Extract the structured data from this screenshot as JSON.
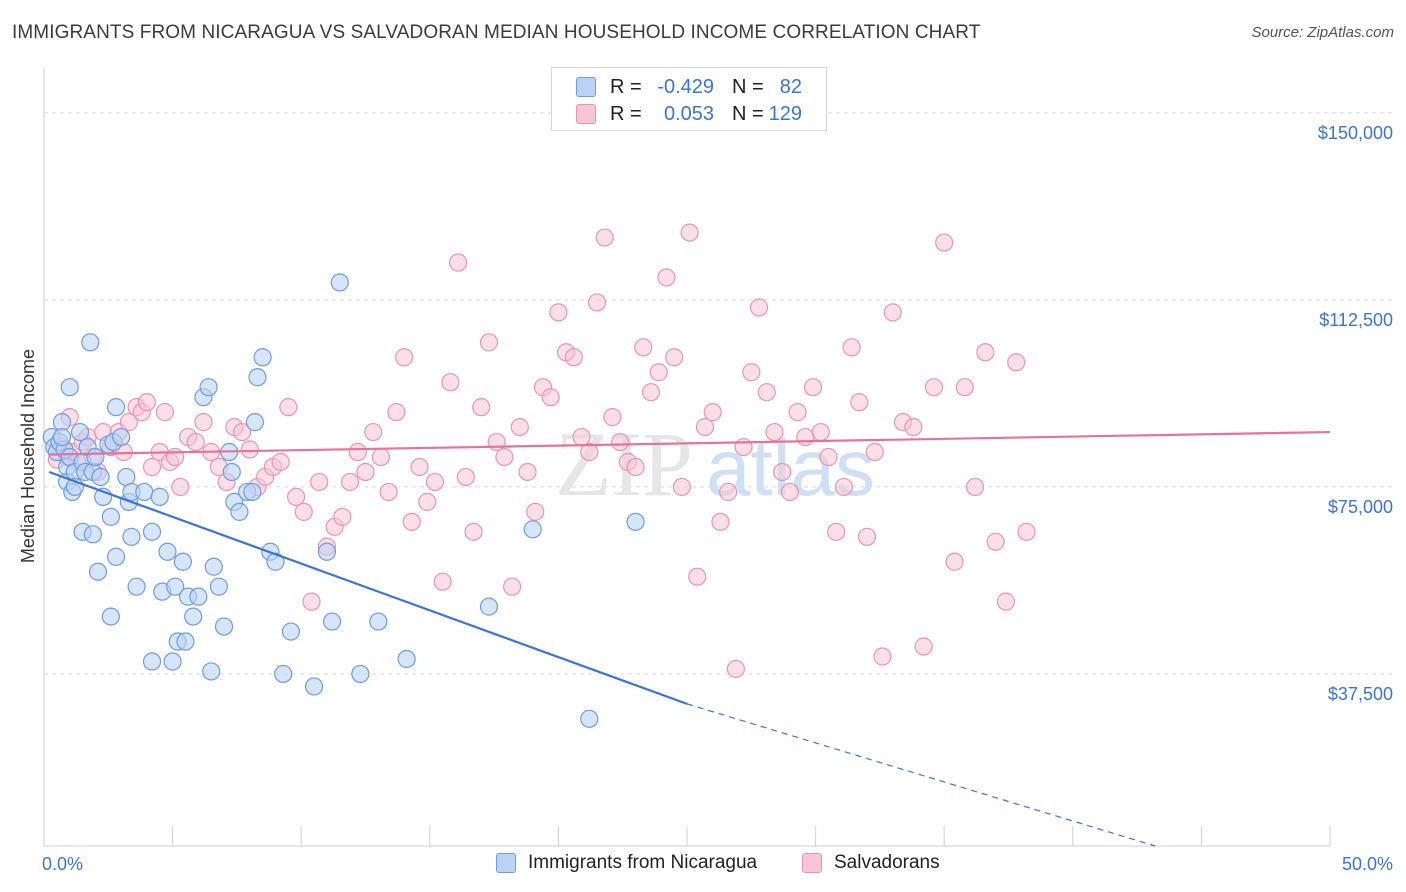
{
  "title": "IMMIGRANTS FROM NICARAGUA VS SALVADORAN MEDIAN HOUSEHOLD INCOME CORRELATION CHART",
  "source": "Source: ZipAtlas.com",
  "colors": {
    "blue": "#3a74d6",
    "blue_fill": "#bcd3f5",
    "pink": "#e5739a",
    "pink_fill": "#f8c5d6",
    "grid": "#d8d8d8",
    "axis_text": "#3a74d6"
  },
  "legend": {
    "rows": [
      {
        "r_label": "R =",
        "r_value": "-0.429",
        "n_label": "N =",
        "n_value": "82"
      },
      {
        "r_label": "R =",
        "r_value": "0.053",
        "n_label": "N =",
        "n_value": "129"
      }
    ]
  },
  "watermark": {
    "zip": "ZIP",
    "atlas": "atlas"
  },
  "chart_data": {
    "type": "scatter",
    "ylabel": "Median Household Income",
    "xlabel": "",
    "xlim": [
      0,
      50
    ],
    "ylim": [
      3000,
      157000
    ],
    "x_tick_labels": {
      "left": "0.0%",
      "right": "50.0%"
    },
    "y_ticks": [
      {
        "value": 37500,
        "label": "$37,500"
      },
      {
        "value": 75000,
        "label": "$75,000"
      },
      {
        "value": 112500,
        "label": "$112,500"
      },
      {
        "value": 150000,
        "label": "$150,000"
      }
    ],
    "grid": true,
    "legend_position": "top-center",
    "series": [
      {
        "name": "Immigrants from Nicaragua",
        "trend": {
          "x0": 0.2,
          "y0": 78000,
          "x1": 25,
          "y1": 31500,
          "dashed_to_x": 43.2,
          "dashed_to_y": 3000
        },
        "points": [
          [
            0.3,
            85000
          ],
          [
            0.4,
            83000
          ],
          [
            0.5,
            82000
          ],
          [
            0.6,
            84000
          ],
          [
            0.7,
            88000
          ],
          [
            0.8,
            82500
          ],
          [
            0.9,
            79000
          ],
          [
            1.0,
            81000
          ],
          [
            0.7,
            85000
          ],
          [
            0.9,
            76000
          ],
          [
            1.2,
            78000
          ],
          [
            1.1,
            74000
          ],
          [
            1.4,
            86000
          ],
          [
            1.5,
            80000
          ],
          [
            1.6,
            78000
          ],
          [
            1.7,
            83000
          ],
          [
            1.9,
            78000
          ],
          [
            2.0,
            81000
          ],
          [
            2.2,
            77000
          ],
          [
            2.3,
            73000
          ],
          [
            2.5,
            83500
          ],
          [
            2.7,
            84000
          ],
          [
            2.8,
            91000
          ],
          [
            3.0,
            85000
          ],
          [
            1.0,
            95000
          ],
          [
            1.2,
            75000
          ],
          [
            1.5,
            66000
          ],
          [
            1.9,
            65500
          ],
          [
            2.1,
            58000
          ],
          [
            2.6,
            69000
          ],
          [
            2.8,
            61000
          ],
          [
            3.2,
            77000
          ],
          [
            3.3,
            72000
          ],
          [
            3.4,
            74000
          ],
          [
            3.6,
            55000
          ],
          [
            3.9,
            74000
          ],
          [
            4.2,
            66000
          ],
          [
            4.5,
            73000
          ],
          [
            4.6,
            54000
          ],
          [
            4.8,
            62000
          ],
          [
            5.1,
            55000
          ],
          [
            5.4,
            60000
          ],
          [
            5.6,
            53000
          ],
          [
            5.8,
            49000
          ],
          [
            6.0,
            53000
          ],
          [
            6.2,
            93000
          ],
          [
            6.4,
            95000
          ],
          [
            6.6,
            59000
          ],
          [
            6.8,
            55000
          ],
          [
            7.0,
            47000
          ],
          [
            7.2,
            82000
          ],
          [
            7.4,
            72000
          ],
          [
            7.6,
            70000
          ],
          [
            7.9,
            74000
          ],
          [
            8.1,
            74000
          ],
          [
            8.3,
            97000
          ],
          [
            8.5,
            101000
          ],
          [
            8.8,
            62000
          ],
          [
            9.0,
            60000
          ],
          [
            3.4,
            65000
          ],
          [
            4.2,
            40000
          ],
          [
            5.0,
            40000
          ],
          [
            5.2,
            44000
          ],
          [
            5.5,
            44000
          ],
          [
            6.5,
            38000
          ],
          [
            7.3,
            78000
          ],
          [
            8.2,
            88000
          ],
          [
            9.3,
            37500
          ],
          [
            9.6,
            46000
          ],
          [
            10.5,
            35000
          ],
          [
            11.0,
            62000
          ],
          [
            11.2,
            48000
          ],
          [
            11.5,
            116000
          ],
          [
            12.3,
            37500
          ],
          [
            13.0,
            48000
          ],
          [
            14.1,
            40500
          ],
          [
            17.3,
            51000
          ],
          [
            19.0,
            66500
          ],
          [
            21.2,
            28500
          ],
          [
            23.0,
            68000
          ],
          [
            1.8,
            104000
          ],
          [
            2.6,
            49000
          ]
        ]
      },
      {
        "name": "Salvadorans",
        "trend": {
          "x0": 0.2,
          "y0": 81500,
          "x1": 50,
          "y1": 86000
        },
        "points": [
          [
            0.5,
            80500
          ],
          [
            0.7,
            83000
          ],
          [
            0.9,
            81000
          ],
          [
            1.1,
            82000
          ],
          [
            1.0,
            89000
          ],
          [
            1.3,
            80000
          ],
          [
            1.5,
            84000
          ],
          [
            1.7,
            85000
          ],
          [
            1.9,
            81000
          ],
          [
            2.1,
            78000
          ],
          [
            2.3,
            86000
          ],
          [
            2.6,
            83000
          ],
          [
            2.9,
            86000
          ],
          [
            3.1,
            82000
          ],
          [
            3.3,
            88000
          ],
          [
            3.6,
            91000
          ],
          [
            3.8,
            90000
          ],
          [
            4.0,
            92000
          ],
          [
            4.2,
            79000
          ],
          [
            4.5,
            82000
          ],
          [
            4.7,
            90000
          ],
          [
            4.9,
            80000
          ],
          [
            5.1,
            81000
          ],
          [
            5.3,
            75000
          ],
          [
            5.6,
            85000
          ],
          [
            5.9,
            84000
          ],
          [
            6.2,
            88000
          ],
          [
            6.5,
            82000
          ],
          [
            6.8,
            79000
          ],
          [
            7.1,
            76000
          ],
          [
            7.4,
            87000
          ],
          [
            7.7,
            86000
          ],
          [
            8.0,
            82500
          ],
          [
            8.3,
            75000
          ],
          [
            8.6,
            77000
          ],
          [
            8.9,
            79000
          ],
          [
            9.2,
            80000
          ],
          [
            9.5,
            91000
          ],
          [
            9.8,
            73000
          ],
          [
            10.1,
            70000
          ],
          [
            10.4,
            52000
          ],
          [
            10.7,
            76000
          ],
          [
            11.0,
            63000
          ],
          [
            11.3,
            67000
          ],
          [
            11.6,
            69000
          ],
          [
            11.9,
            76000
          ],
          [
            12.2,
            82000
          ],
          [
            12.5,
            78000
          ],
          [
            12.8,
            86000
          ],
          [
            13.1,
            81000
          ],
          [
            13.4,
            74000
          ],
          [
            13.7,
            90000
          ],
          [
            14.0,
            101000
          ],
          [
            14.3,
            68000
          ],
          [
            14.6,
            79000
          ],
          [
            14.9,
            72000
          ],
          [
            15.2,
            76000
          ],
          [
            15.5,
            56000
          ],
          [
            15.8,
            96000
          ],
          [
            16.1,
            120000
          ],
          [
            16.4,
            77000
          ],
          [
            16.7,
            66000
          ],
          [
            17.0,
            91000
          ],
          [
            17.3,
            104000
          ],
          [
            17.6,
            84000
          ],
          [
            17.9,
            81000
          ],
          [
            18.2,
            55000
          ],
          [
            18.5,
            87000
          ],
          [
            18.8,
            78000
          ],
          [
            19.1,
            70000
          ],
          [
            19.4,
            95000
          ],
          [
            19.7,
            93000
          ],
          [
            20.0,
            110000
          ],
          [
            20.3,
            102000
          ],
          [
            20.6,
            101000
          ],
          [
            20.9,
            85000
          ],
          [
            21.2,
            82000
          ],
          [
            21.5,
            112000
          ],
          [
            21.8,
            125000
          ],
          [
            22.1,
            89000
          ],
          [
            22.4,
            84000
          ],
          [
            22.7,
            80000
          ],
          [
            23.0,
            79000
          ],
          [
            23.3,
            103000
          ],
          [
            23.6,
            94000
          ],
          [
            23.9,
            98000
          ],
          [
            24.2,
            117000
          ],
          [
            24.5,
            101000
          ],
          [
            24.8,
            75000
          ],
          [
            25.1,
            126000
          ],
          [
            25.4,
            57000
          ],
          [
            25.7,
            87000
          ],
          [
            26.0,
            90000
          ],
          [
            26.3,
            68000
          ],
          [
            26.6,
            74000
          ],
          [
            26.9,
            38500
          ],
          [
            27.2,
            83000
          ],
          [
            27.5,
            98000
          ],
          [
            27.8,
            111000
          ],
          [
            28.1,
            94000
          ],
          [
            28.4,
            86000
          ],
          [
            28.7,
            78000
          ],
          [
            29.0,
            74000
          ],
          [
            29.3,
            90000
          ],
          [
            29.6,
            85000
          ],
          [
            29.9,
            95000
          ],
          [
            30.2,
            86000
          ],
          [
            30.5,
            81000
          ],
          [
            30.8,
            66000
          ],
          [
            31.1,
            75000
          ],
          [
            31.4,
            103000
          ],
          [
            31.7,
            92000
          ],
          [
            32.0,
            65000
          ],
          [
            32.3,
            82000
          ],
          [
            32.6,
            41000
          ],
          [
            33.0,
            110000
          ],
          [
            33.4,
            88000
          ],
          [
            33.8,
            87000
          ],
          [
            34.2,
            43000
          ],
          [
            34.6,
            95000
          ],
          [
            35.0,
            124000
          ],
          [
            35.4,
            60000
          ],
          [
            35.8,
            95000
          ],
          [
            36.2,
            75000
          ],
          [
            36.6,
            102000
          ],
          [
            37.0,
            64000
          ],
          [
            37.4,
            52000
          ],
          [
            37.8,
            100000
          ],
          [
            38.2,
            66000
          ]
        ]
      }
    ]
  }
}
